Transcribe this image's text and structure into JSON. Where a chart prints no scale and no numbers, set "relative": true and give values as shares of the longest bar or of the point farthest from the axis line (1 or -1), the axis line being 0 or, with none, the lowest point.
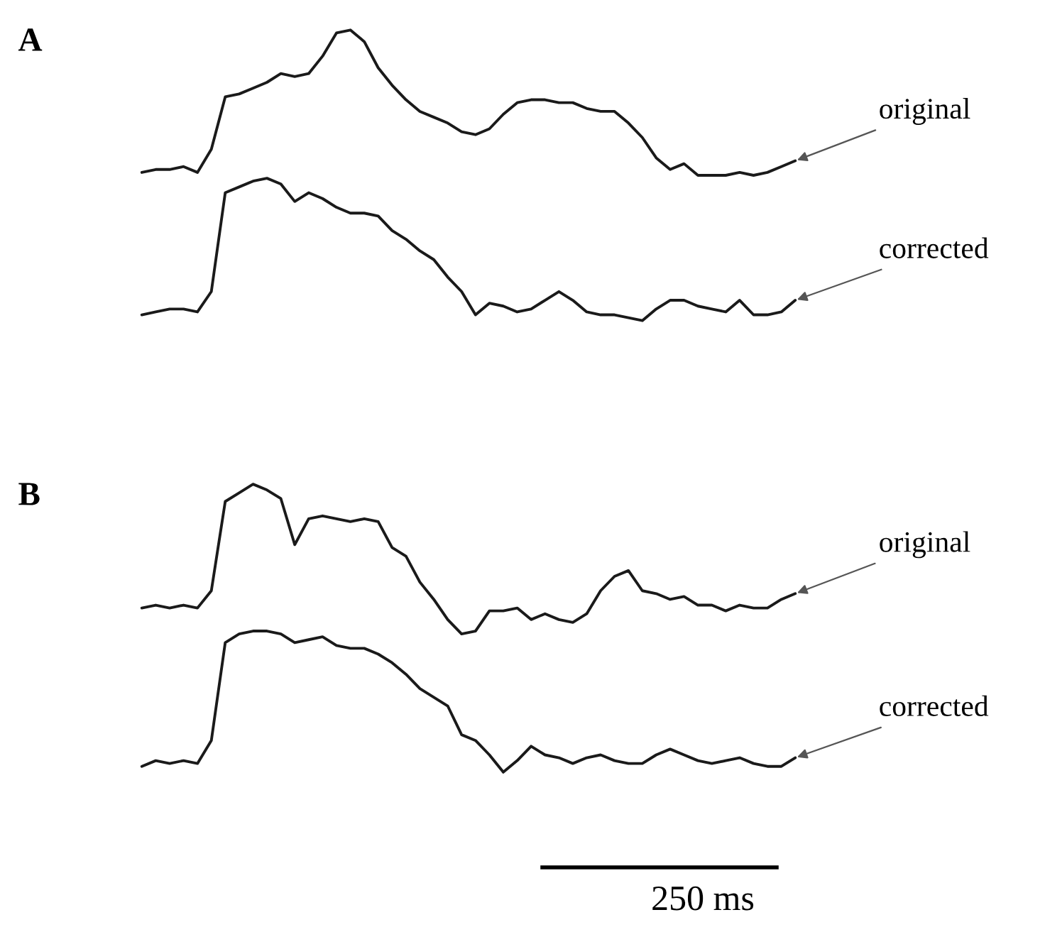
{
  "chart_data": [
    {
      "type": "line",
      "title": "A",
      "relative": true,
      "categories": [
        null,
        null,
        null,
        null,
        null,
        null,
        null,
        null,
        null,
        null,
        null,
        null,
        null,
        null,
        null,
        null,
        null,
        null,
        null,
        null,
        null,
        null,
        null,
        null,
        null,
        null,
        null,
        null,
        null,
        null,
        null,
        null,
        null,
        null,
        null,
        null,
        null,
        null,
        null,
        null,
        null,
        null,
        null,
        null,
        null,
        null,
        null,
        null
      ],
      "series": [
        {
          "name": "original",
          "color": "#1a1a1a",
          "values": [
            0.51,
            0.52,
            0.52,
            0.53,
            0.51,
            0.59,
            0.77,
            0.78,
            0.8,
            0.82,
            0.85,
            0.84,
            0.85,
            0.91,
            0.99,
            1.0,
            0.96,
            0.87,
            0.81,
            0.76,
            0.72,
            0.7,
            0.68,
            0.65,
            0.64,
            0.66,
            0.71,
            0.75,
            0.76,
            0.76,
            0.75,
            0.75,
            0.73,
            0.72,
            0.72,
            0.68,
            0.63,
            0.56,
            0.52,
            0.54,
            0.5,
            0.5,
            0.5,
            0.51,
            0.5,
            0.51,
            0.53,
            0.55
          ]
        },
        {
          "name": "corrected",
          "color": "#1a1a1a",
          "values": [
            0.02,
            0.03,
            0.04,
            0.04,
            0.03,
            0.1,
            0.44,
            0.46,
            0.48,
            0.49,
            0.47,
            0.41,
            0.44,
            0.42,
            0.39,
            0.37,
            0.37,
            0.36,
            0.31,
            0.28,
            0.24,
            0.21,
            0.15,
            0.1,
            0.02,
            0.06,
            0.05,
            0.03,
            0.04,
            0.07,
            0.1,
            0.07,
            0.03,
            0.02,
            0.02,
            0.01,
            0.0,
            0.04,
            0.07,
            0.07,
            0.05,
            0.04,
            0.03,
            0.07,
            0.02,
            0.02,
            0.03,
            0.07
          ]
        }
      ]
    },
    {
      "type": "line",
      "title": "B",
      "relative": true,
      "categories": [
        null,
        null,
        null,
        null,
        null,
        null,
        null,
        null,
        null,
        null,
        null,
        null,
        null,
        null,
        null,
        null,
        null,
        null,
        null,
        null,
        null,
        null,
        null,
        null,
        null,
        null,
        null,
        null,
        null,
        null,
        null,
        null,
        null,
        null,
        null,
        null,
        null,
        null,
        null,
        null,
        null,
        null,
        null,
        null,
        null,
        null,
        null,
        null
      ],
      "series": [
        {
          "name": "original",
          "color": "#1a1a1a",
          "values": [
            0.57,
            0.58,
            0.57,
            0.58,
            0.57,
            0.63,
            0.94,
            0.97,
            1.0,
            0.98,
            0.95,
            0.79,
            0.88,
            0.89,
            0.88,
            0.87,
            0.88,
            0.87,
            0.78,
            0.75,
            0.66,
            0.6,
            0.53,
            0.48,
            0.49,
            0.56,
            0.56,
            0.57,
            0.53,
            0.55,
            0.53,
            0.52,
            0.55,
            0.63,
            0.68,
            0.7,
            0.63,
            0.62,
            0.6,
            0.61,
            0.58,
            0.58,
            0.56,
            0.58,
            0.57,
            0.57,
            0.6,
            0.62
          ]
        },
        {
          "name": "corrected",
          "color": "#1a1a1a",
          "values": [
            0.02,
            0.04,
            0.03,
            0.04,
            0.03,
            0.11,
            0.45,
            0.48,
            0.49,
            0.49,
            0.48,
            0.45,
            0.46,
            0.47,
            0.44,
            0.43,
            0.43,
            0.41,
            0.38,
            0.34,
            0.29,
            0.26,
            0.23,
            0.13,
            0.11,
            0.06,
            0.0,
            0.04,
            0.09,
            0.06,
            0.05,
            0.03,
            0.05,
            0.06,
            0.04,
            0.03,
            0.03,
            0.06,
            0.08,
            0.06,
            0.04,
            0.03,
            0.04,
            0.05,
            0.03,
            0.02,
            0.02,
            0.05
          ]
        }
      ],
      "annotations": [
        "250 ms"
      ]
    }
  ]
}
